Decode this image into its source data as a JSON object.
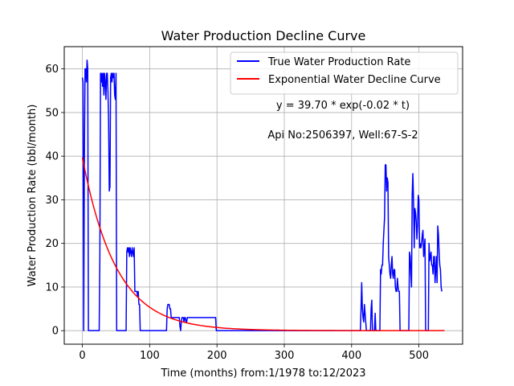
{
  "chart_data": {
    "type": "line",
    "title": "Water Production Decline Curve",
    "xlabel": "Time (months) from:1/1978 to:12/2023",
    "ylabel": "Water Production Rate (bbl/month)",
    "xlim": [
      -26.9,
      564.9
    ],
    "ylim": [
      -3.1,
      65.1
    ],
    "xticks": [
      0,
      100,
      200,
      300,
      400,
      500
    ],
    "yticks": [
      0,
      10,
      20,
      30,
      40,
      50,
      60
    ],
    "grid": true,
    "legend_position": "top-right",
    "annotations": [
      "y = 39.70 * exp(-0.02 * t)",
      "Api No:2506397, Well:67-S-2"
    ],
    "series": [
      {
        "name": "True Water Production Rate",
        "color": "#0000ff",
        "style": "step-ish",
        "points": [
          [
            0,
            58
          ],
          [
            1,
            57
          ],
          [
            2,
            0
          ],
          [
            3,
            40
          ],
          [
            4,
            60
          ],
          [
            5,
            60
          ],
          [
            6,
            57
          ],
          [
            7,
            62
          ],
          [
            8,
            60
          ],
          [
            9,
            0
          ],
          [
            25,
            0
          ],
          [
            26,
            17
          ],
          [
            27,
            59
          ],
          [
            28,
            57
          ],
          [
            29,
            59
          ],
          [
            30,
            56
          ],
          [
            31,
            59
          ],
          [
            32,
            54
          ],
          [
            33,
            59
          ],
          [
            34,
            57
          ],
          [
            35,
            53
          ],
          [
            36,
            59
          ],
          [
            37,
            59
          ],
          [
            38,
            55
          ],
          [
            39,
            48
          ],
          [
            40,
            32
          ],
          [
            41,
            33
          ],
          [
            42,
            58
          ],
          [
            43,
            59
          ],
          [
            44,
            57
          ],
          [
            45,
            59
          ],
          [
            46,
            58
          ],
          [
            47,
            59
          ],
          [
            48,
            54
          ],
          [
            49,
            53
          ],
          [
            50,
            59
          ],
          [
            51,
            0
          ],
          [
            65,
            0
          ],
          [
            66,
            18
          ],
          [
            67,
            19
          ],
          [
            68,
            18
          ],
          [
            69,
            19
          ],
          [
            70,
            17
          ],
          [
            71,
            19
          ],
          [
            72,
            18
          ],
          [
            73,
            17
          ],
          [
            74,
            19
          ],
          [
            75,
            18
          ],
          [
            76,
            17
          ],
          [
            77,
            19
          ],
          [
            78,
            9
          ],
          [
            79,
            9
          ],
          [
            80,
            9
          ],
          [
            81,
            9
          ],
          [
            82,
            8
          ],
          [
            83,
            9
          ],
          [
            84,
            6
          ],
          [
            85,
            6
          ],
          [
            86,
            0
          ],
          [
            125,
            0
          ],
          [
            126,
            5
          ],
          [
            127,
            6
          ],
          [
            128,
            6
          ],
          [
            129,
            6
          ],
          [
            130,
            5
          ],
          [
            131,
            5
          ],
          [
            132,
            3
          ],
          [
            133,
            3
          ],
          [
            134,
            3
          ],
          [
            135,
            3
          ],
          [
            136,
            3
          ],
          [
            137,
            3
          ],
          [
            138,
            3
          ],
          [
            139,
            3
          ],
          [
            140,
            3
          ],
          [
            141,
            3
          ],
          [
            142,
            3
          ],
          [
            143,
            3
          ],
          [
            144,
            3
          ],
          [
            145,
            1
          ],
          [
            146,
            0
          ],
          [
            147,
            2
          ],
          [
            148,
            3
          ],
          [
            149,
            3
          ],
          [
            150,
            3
          ],
          [
            151,
            2
          ],
          [
            152,
            3
          ],
          [
            153,
            3
          ],
          [
            154,
            2
          ],
          [
            155,
            2
          ],
          [
            156,
            3
          ],
          [
            157,
            3
          ],
          [
            158,
            3
          ],
          [
            159,
            3
          ],
          [
            160,
            3
          ],
          [
            161,
            3
          ],
          [
            162,
            3
          ],
          [
            163,
            3
          ],
          [
            164,
            3
          ],
          [
            165,
            3
          ],
          [
            166,
            3
          ],
          [
            167,
            3
          ],
          [
            168,
            3
          ],
          [
            169,
            3
          ],
          [
            170,
            3
          ],
          [
            171,
            3
          ],
          [
            172,
            3
          ],
          [
            173,
            3
          ],
          [
            174,
            3
          ],
          [
            175,
            3
          ],
          [
            176,
            3
          ],
          [
            177,
            3
          ],
          [
            178,
            3
          ],
          [
            179,
            3
          ],
          [
            180,
            3
          ],
          [
            181,
            3
          ],
          [
            182,
            3
          ],
          [
            183,
            3
          ],
          [
            184,
            3
          ],
          [
            185,
            3
          ],
          [
            186,
            3
          ],
          [
            187,
            3
          ],
          [
            188,
            3
          ],
          [
            189,
            3
          ],
          [
            190,
            3
          ],
          [
            191,
            3
          ],
          [
            192,
            3
          ],
          [
            193,
            3
          ],
          [
            194,
            3
          ],
          [
            195,
            3
          ],
          [
            196,
            3
          ],
          [
            197,
            3
          ],
          [
            198,
            3
          ],
          [
            199,
            0
          ],
          [
            413,
            0
          ],
          [
            414,
            5
          ],
          [
            415,
            11
          ],
          [
            416,
            5
          ],
          [
            417,
            3
          ],
          [
            418,
            2
          ],
          [
            419,
            6
          ],
          [
            420,
            4
          ],
          [
            421,
            2
          ],
          [
            422,
            0
          ],
          [
            428,
            0
          ],
          [
            429,
            5
          ],
          [
            430,
            7
          ],
          [
            431,
            0
          ],
          [
            434,
            0
          ],
          [
            435,
            4
          ],
          [
            436,
            0
          ],
          [
            442,
            0
          ],
          [
            443,
            14
          ],
          [
            444,
            13
          ],
          [
            445,
            15
          ],
          [
            446,
            15
          ],
          [
            447,
            20
          ],
          [
            448,
            23
          ],
          [
            449,
            26
          ],
          [
            450,
            38
          ],
          [
            451,
            38
          ],
          [
            452,
            32
          ],
          [
            453,
            35
          ],
          [
            454,
            34
          ],
          [
            455,
            17
          ],
          [
            456,
            15
          ],
          [
            457,
            13
          ],
          [
            458,
            12
          ],
          [
            459,
            15
          ],
          [
            460,
            17
          ],
          [
            461,
            13
          ],
          [
            462,
            12
          ],
          [
            463,
            14
          ],
          [
            464,
            14
          ],
          [
            465,
            10
          ],
          [
            466,
            9
          ],
          [
            467,
            9
          ],
          [
            468,
            12
          ],
          [
            469,
            10
          ],
          [
            470,
            9
          ],
          [
            471,
            9
          ],
          [
            472,
            0
          ],
          [
            485,
            0
          ],
          [
            486,
            18
          ],
          [
            487,
            17
          ],
          [
            488,
            13
          ],
          [
            489,
            10
          ],
          [
            490,
            31
          ],
          [
            491,
            36
          ],
          [
            492,
            30
          ],
          [
            493,
            19
          ],
          [
            494,
            28
          ],
          [
            495,
            27
          ],
          [
            496,
            25
          ],
          [
            497,
            21
          ],
          [
            498,
            24
          ],
          [
            499,
            31
          ],
          [
            500,
            30
          ],
          [
            501,
            19
          ],
          [
            502,
            20
          ],
          [
            503,
            19
          ],
          [
            504,
            20
          ],
          [
            505,
            22
          ],
          [
            506,
            23
          ],
          [
            507,
            17
          ],
          [
            508,
            19
          ],
          [
            509,
            21
          ],
          [
            510,
            0
          ],
          [
            514,
            0
          ],
          [
            515,
            20
          ],
          [
            516,
            16
          ],
          [
            517,
            17
          ],
          [
            518,
            18
          ],
          [
            519,
            15
          ],
          [
            520,
            15
          ],
          [
            521,
            13
          ],
          [
            522,
            17
          ],
          [
            523,
            17
          ],
          [
            524,
            11
          ],
          [
            525,
            14
          ],
          [
            526,
            17
          ],
          [
            527,
            11
          ],
          [
            528,
            24
          ],
          [
            529,
            22
          ],
          [
            530,
            18
          ],
          [
            531,
            15
          ],
          [
            532,
            14
          ],
          [
            533,
            10
          ],
          [
            534,
            9
          ]
        ]
      },
      {
        "name": "Exponential Water Decline Curve",
        "color": "#ff0000",
        "style": "smooth",
        "equation": {
          "a": 39.7,
          "b": 0.02
        },
        "x_range": [
          0,
          539
        ]
      }
    ]
  }
}
